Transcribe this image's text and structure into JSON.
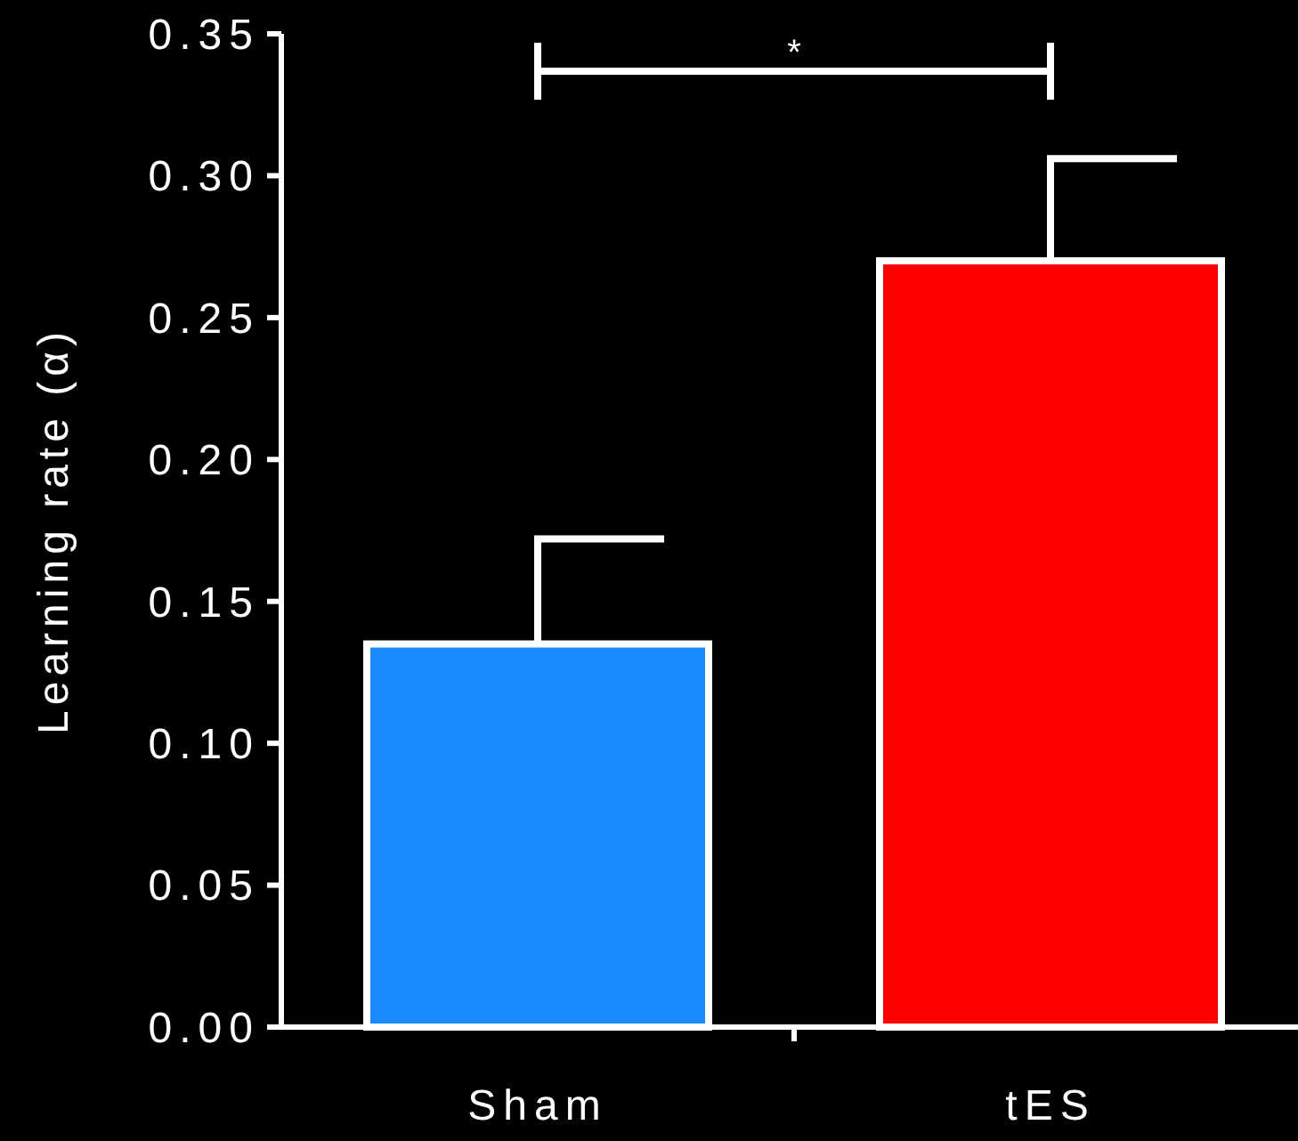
{
  "chart_data": {
    "type": "bar",
    "ylabel": "Learning rate (α)",
    "categories": [
      "Sham",
      "tES"
    ],
    "values": [
      0.135,
      0.27
    ],
    "colors": [
      "#1a8cff",
      "#ff0000"
    ],
    "errors": [
      [
        0.135,
        0.172
      ],
      [
        0.27,
        0.306
      ]
    ],
    "ylim": [
      0,
      0.35
    ],
    "yticks": [
      {
        "value": 0,
        "label": "0.00"
      },
      {
        "value": 0.05,
        "label": "0.05"
      },
      {
        "value": 0.1,
        "label": "0.10"
      },
      {
        "value": 0.15,
        "label": "0.15"
      },
      {
        "value": 0.2,
        "label": "0.20"
      },
      {
        "value": 0.25,
        "label": "0.25"
      },
      {
        "value": 0.3,
        "label": "0.30"
      },
      {
        "value": 0.35,
        "label": "0.35"
      }
    ],
    "grid": false,
    "annotations": [
      "*"
    ]
  }
}
